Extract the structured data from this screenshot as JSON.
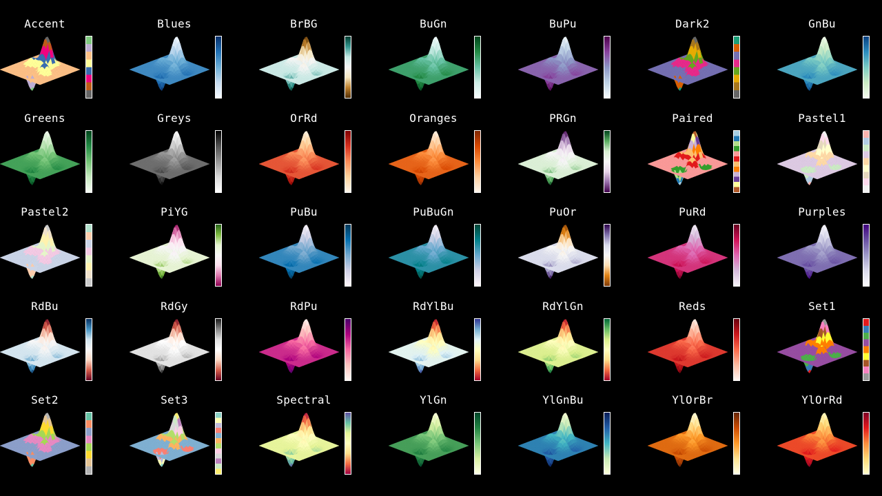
{
  "chart_data": {
    "type": "surface",
    "columns": 7,
    "rows": 5,
    "colormaps": [
      {
        "name": "Accent",
        "kind": "qualitative",
        "colors": [
          "#7fc97f",
          "#beaed4",
          "#fdc086",
          "#ffff99",
          "#386cb0",
          "#f0027f",
          "#bf5b17",
          "#666666"
        ]
      },
      {
        "name": "Blues",
        "kind": "sequential",
        "colors": [
          "#f7fbff",
          "#c6dbef",
          "#6baed6",
          "#2171b5",
          "#08306b"
        ]
      },
      {
        "name": "BrBG",
        "kind": "diverging",
        "colors": [
          "#543005",
          "#bf812d",
          "#f6e8c3",
          "#f5f5f5",
          "#c7eae5",
          "#35978f",
          "#003c30"
        ]
      },
      {
        "name": "BuGn",
        "kind": "sequential",
        "colors": [
          "#f7fcfd",
          "#ccece6",
          "#66c2a4",
          "#238b45",
          "#00441b"
        ]
      },
      {
        "name": "BuPu",
        "kind": "sequential",
        "colors": [
          "#f7fcfd",
          "#bfd3e6",
          "#8c96c6",
          "#88419d",
          "#4d004b"
        ]
      },
      {
        "name": "Dark2",
        "kind": "qualitative",
        "colors": [
          "#1b9e77",
          "#d95f02",
          "#7570b3",
          "#e7298a",
          "#66a61e",
          "#e6ab02",
          "#a6761d",
          "#666666"
        ]
      },
      {
        "name": "GnBu",
        "kind": "sequential",
        "colors": [
          "#f7fcf0",
          "#ccebc5",
          "#7bccc4",
          "#2b8cbe",
          "#084081"
        ]
      },
      {
        "name": "Greens",
        "kind": "sequential",
        "colors": [
          "#f7fcf5",
          "#c7e9c0",
          "#74c476",
          "#238b45",
          "#00441b"
        ]
      },
      {
        "name": "Greys",
        "kind": "sequential",
        "colors": [
          "#ffffff",
          "#d9d9d9",
          "#969696",
          "#525252",
          "#000000"
        ]
      },
      {
        "name": "OrRd",
        "kind": "sequential",
        "colors": [
          "#fff7ec",
          "#fdd49e",
          "#fc8d59",
          "#d7301f",
          "#7f0000"
        ]
      },
      {
        "name": "Oranges",
        "kind": "sequential",
        "colors": [
          "#fff5eb",
          "#fdd0a2",
          "#fd8d3c",
          "#d94801",
          "#7f2704"
        ]
      },
      {
        "name": "PRGn",
        "kind": "diverging",
        "colors": [
          "#40004b",
          "#9970ab",
          "#e7d4e8",
          "#f7f7f7",
          "#d9f0d3",
          "#5aae61",
          "#00441b"
        ]
      },
      {
        "name": "Paired",
        "kind": "qualitative",
        "colors": [
          "#a6cee3",
          "#1f78b4",
          "#b2df8a",
          "#33a02c",
          "#fb9a99",
          "#e31a1c",
          "#fdbf6f",
          "#ff7f00",
          "#cab2d6",
          "#6a3d9a",
          "#ffff99",
          "#b15928"
        ]
      },
      {
        "name": "Pastel1",
        "kind": "qualitative",
        "colors": [
          "#fbb4ae",
          "#b3cde3",
          "#ccebc5",
          "#decbe4",
          "#fed9a6",
          "#ffffcc",
          "#e5d8bd",
          "#fddaec",
          "#f2f2f2"
        ]
      },
      {
        "name": "Pastel2",
        "kind": "qualitative",
        "colors": [
          "#b3e2cd",
          "#fdcdac",
          "#cbd5e8",
          "#f4cae4",
          "#e6f5c9",
          "#fff2ae",
          "#f1e2cc",
          "#cccccc"
        ]
      },
      {
        "name": "PiYG",
        "kind": "diverging",
        "colors": [
          "#8e0152",
          "#de77ae",
          "#fde0ef",
          "#f7f7f7",
          "#e6f5d0",
          "#7fbc41",
          "#276419"
        ]
      },
      {
        "name": "PuBu",
        "kind": "sequential",
        "colors": [
          "#fff7fb",
          "#d0d1e6",
          "#74a9cf",
          "#0570b0",
          "#023858"
        ]
      },
      {
        "name": "PuBuGn",
        "kind": "sequential",
        "colors": [
          "#fff7fb",
          "#d0d1e6",
          "#67a9cf",
          "#02818a",
          "#014636"
        ]
      },
      {
        "name": "PuOr",
        "kind": "diverging",
        "colors": [
          "#7f3b08",
          "#e08214",
          "#fee0b6",
          "#f7f7f7",
          "#d8daeb",
          "#8073ac",
          "#2d004b"
        ]
      },
      {
        "name": "PuRd",
        "kind": "sequential",
        "colors": [
          "#f7f4f9",
          "#d4b9da",
          "#df65b0",
          "#ce1256",
          "#67001f"
        ]
      },
      {
        "name": "Purples",
        "kind": "sequential",
        "colors": [
          "#fcfbfd",
          "#dadaeb",
          "#9e9ac8",
          "#6a51a3",
          "#3f007d"
        ]
      },
      {
        "name": "RdBu",
        "kind": "diverging",
        "colors": [
          "#67001f",
          "#d6604d",
          "#fddbc7",
          "#f7f7f7",
          "#d1e5f0",
          "#4393c3",
          "#053061"
        ]
      },
      {
        "name": "RdGy",
        "kind": "diverging",
        "colors": [
          "#67001f",
          "#d6604d",
          "#fddbc7",
          "#ffffff",
          "#e0e0e0",
          "#878787",
          "#1a1a1a"
        ]
      },
      {
        "name": "RdPu",
        "kind": "sequential",
        "colors": [
          "#fff7f3",
          "#fcc5c0",
          "#f768a1",
          "#ae017e",
          "#49006a"
        ]
      },
      {
        "name": "RdYlBu",
        "kind": "diverging",
        "colors": [
          "#a50026",
          "#f46d43",
          "#fee090",
          "#ffffbf",
          "#e0f3f8",
          "#74add1",
          "#313695"
        ]
      },
      {
        "name": "RdYlGn",
        "kind": "diverging",
        "colors": [
          "#a50026",
          "#f46d43",
          "#fee08b",
          "#ffffbf",
          "#d9ef8b",
          "#66bd63",
          "#006837"
        ]
      },
      {
        "name": "Reds",
        "kind": "sequential",
        "colors": [
          "#fff5f0",
          "#fcbba1",
          "#fb6a4a",
          "#cb181d",
          "#67000d"
        ]
      },
      {
        "name": "Set1",
        "kind": "qualitative",
        "colors": [
          "#e41a1c",
          "#377eb8",
          "#4daf4a",
          "#984ea3",
          "#ff7f00",
          "#ffff33",
          "#a65628",
          "#f781bf",
          "#999999"
        ]
      },
      {
        "name": "Set2",
        "kind": "qualitative",
        "colors": [
          "#66c2a5",
          "#fc8d62",
          "#8da0cb",
          "#e78ac3",
          "#a6d854",
          "#ffd92f",
          "#e5c494",
          "#b3b3b3"
        ]
      },
      {
        "name": "Set3",
        "kind": "qualitative",
        "colors": [
          "#8dd3c7",
          "#ffffb3",
          "#bebada",
          "#fb8072",
          "#80b1d3",
          "#fdb462",
          "#b3de69",
          "#fccde5",
          "#d9d9d9",
          "#bc80bd",
          "#ccebc5",
          "#ffed6f"
        ]
      },
      {
        "name": "Spectral",
        "kind": "diverging",
        "colors": [
          "#9e0142",
          "#f46d43",
          "#fee08b",
          "#ffffbf",
          "#e6f598",
          "#66c2a5",
          "#5e4fa2"
        ]
      },
      {
        "name": "YlGn",
        "kind": "sequential",
        "colors": [
          "#ffffe5",
          "#d9f0a3",
          "#78c679",
          "#238443",
          "#004529"
        ]
      },
      {
        "name": "YlGnBu",
        "kind": "sequential",
        "colors": [
          "#ffffd9",
          "#c7e9b4",
          "#41b6c4",
          "#225ea8",
          "#081d58"
        ]
      },
      {
        "name": "YlOrBr",
        "kind": "sequential",
        "colors": [
          "#ffffe5",
          "#fee391",
          "#fe9929",
          "#cc4c02",
          "#662506"
        ]
      },
      {
        "name": "YlOrRd",
        "kind": "sequential",
        "colors": [
          "#ffffcc",
          "#fed976",
          "#fd8d3c",
          "#e31a1c",
          "#800026"
        ]
      }
    ]
  }
}
